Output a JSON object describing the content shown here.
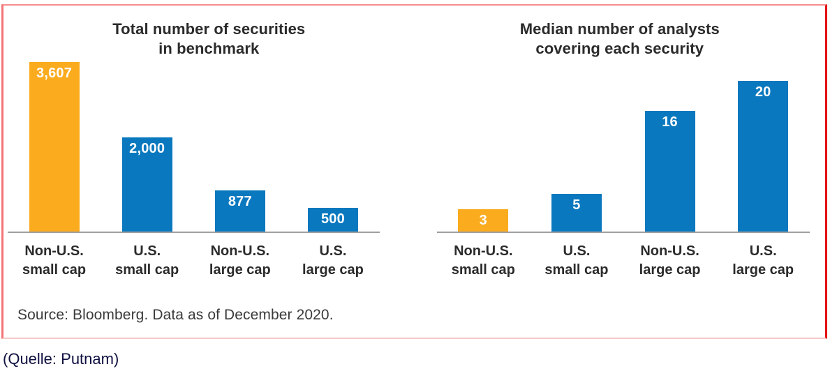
{
  "chart_data": [
    {
      "type": "bar",
      "title": "Total number of securities\nin benchmark",
      "categories": [
        "Non-U.S.\nsmall cap",
        "U.S.\nsmall cap",
        "Non-U.S.\nlarge cap",
        "U.S.\nlarge cap"
      ],
      "values": [
        3607,
        2000,
        877,
        500
      ],
      "value_labels": [
        "3,607",
        "2,000",
        "877",
        "500"
      ],
      "bar_colors": [
        "#FAAB1E",
        "#0A78BE",
        "#0A78BE",
        "#0A78BE"
      ],
      "ylim": [
        0,
        3607
      ],
      "grid": false,
      "legend": "none",
      "value_label_position": "inside-top"
    },
    {
      "type": "bar",
      "title": "Median number of analysts\ncovering each security",
      "categories": [
        "Non-U.S.\nsmall cap",
        "U.S.\nsmall cap",
        "Non-U.S.\nlarge cap",
        "U.S.\nlarge cap"
      ],
      "values": [
        3,
        5,
        16,
        20
      ],
      "value_labels": [
        "3",
        "5",
        "16",
        "20"
      ],
      "bar_colors": [
        "#FAAB1E",
        "#0A78BE",
        "#0A78BE",
        "#0A78BE"
      ],
      "ylim": [
        0,
        22.5
      ],
      "grid": false,
      "legend": "none",
      "value_label_position": "inside-top"
    }
  ],
  "colors": {
    "accent_orange": "#FAAB1E",
    "accent_blue": "#0A78BE",
    "border_red": "#E60D12",
    "axis_gray": "#9E9E9E",
    "title_text": "#2B2B2B",
    "caption_navy": "#0F1040"
  },
  "footer": {
    "source": "Source: Bloomberg. Data as of December 2020.",
    "quelle": "(Quelle: Putnam)"
  }
}
